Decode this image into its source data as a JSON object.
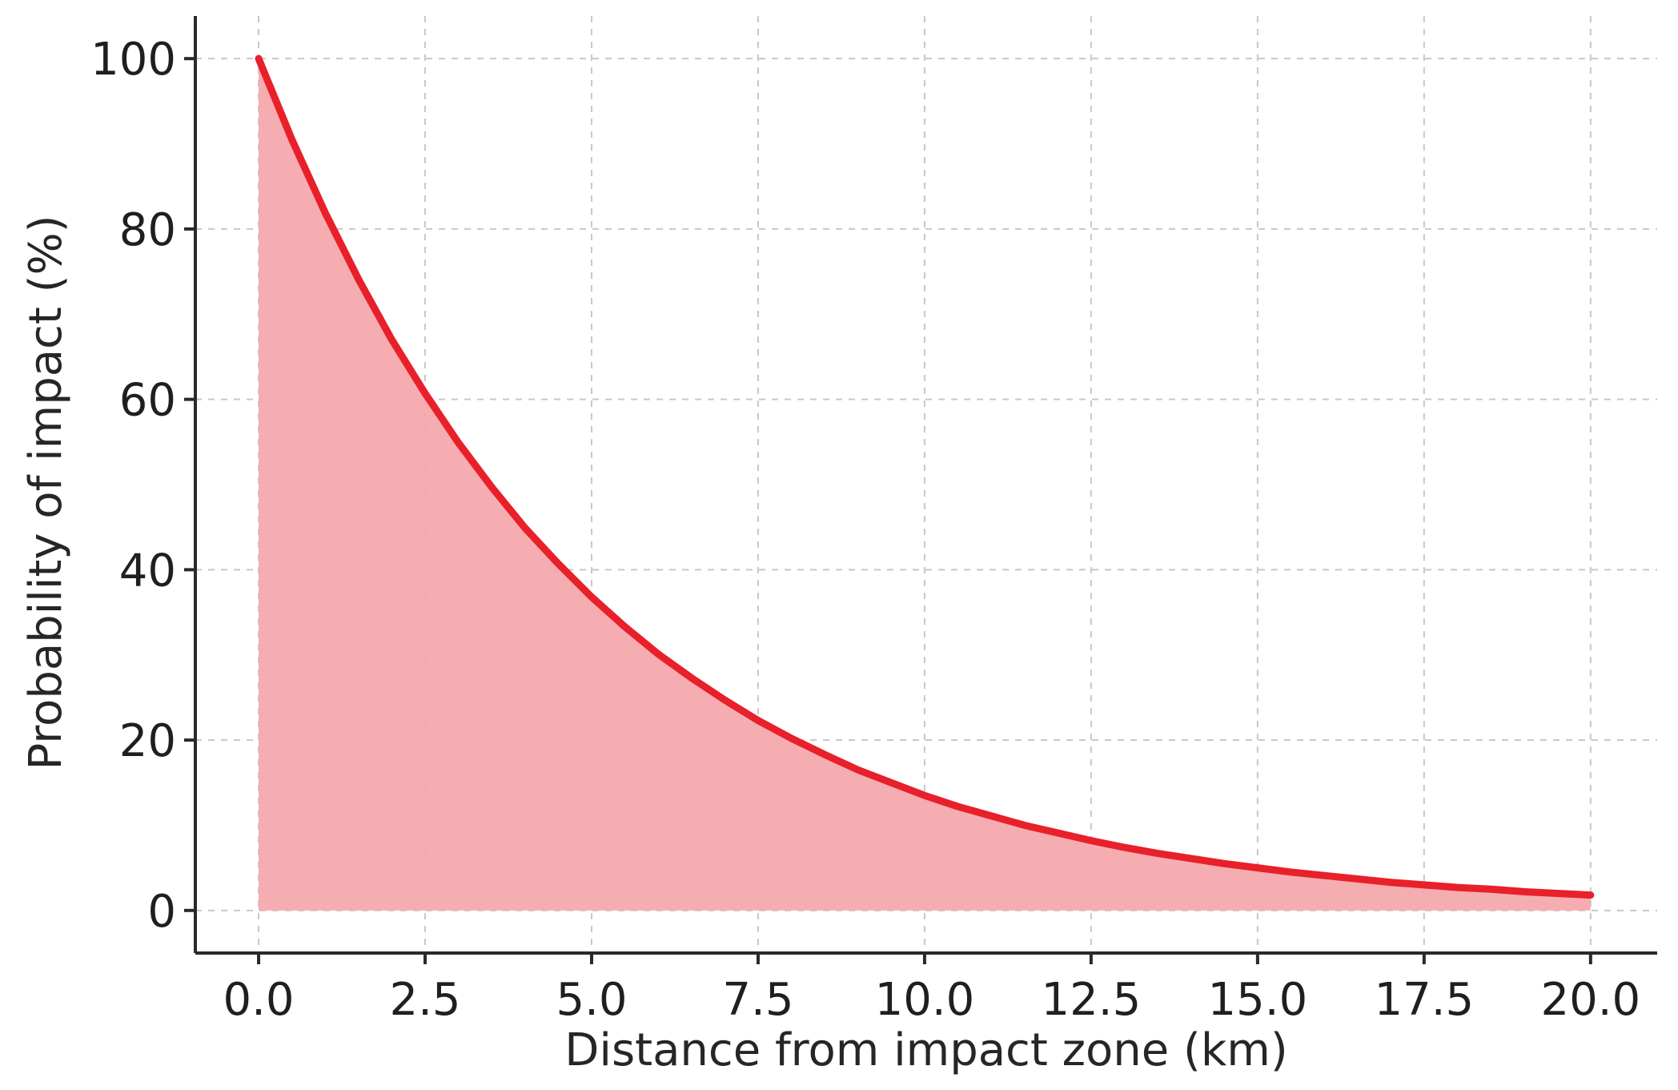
{
  "chart_data": {
    "type": "area",
    "xlabel": "Distance from impact zone (km)",
    "ylabel": "Probability of impact (%)",
    "xlim": [
      -0.95,
      21.0
    ],
    "ylim": [
      -5,
      105
    ],
    "xticks": [
      "0.0",
      "2.5",
      "5.0",
      "7.5",
      "10.0",
      "12.5",
      "15.0",
      "17.5",
      "20.0"
    ],
    "yticks": [
      "0",
      "20",
      "40",
      "60",
      "80",
      "100"
    ],
    "grid": true,
    "legend": "none",
    "series": [
      {
        "x": [
          0,
          0.5,
          1,
          1.5,
          2,
          2.5,
          3,
          3.5,
          4,
          4.5,
          5,
          5.5,
          6,
          6.5,
          7,
          7.5,
          8,
          8.5,
          9,
          9.5,
          10,
          10.5,
          11,
          11.5,
          12,
          12.5,
          13,
          13.5,
          14,
          14.5,
          15,
          15.5,
          16,
          16.5,
          17,
          17.5,
          18,
          18.5,
          19,
          19.5,
          20
        ],
        "y": [
          100,
          90.5,
          81.9,
          74.1,
          67.0,
          60.7,
          54.9,
          49.7,
          44.9,
          40.7,
          36.8,
          33.3,
          30.1,
          27.3,
          24.7,
          22.3,
          20.2,
          18.3,
          16.5,
          15.0,
          13.5,
          12.2,
          11.1,
          10.0,
          9.1,
          8.2,
          7.4,
          6.7,
          6.1,
          5.5,
          5.0,
          4.5,
          4.1,
          3.7,
          3.3,
          3.0,
          2.7,
          2.5,
          2.2,
          2.0,
          1.8
        ]
      }
    ],
    "colors": {
      "line": "#e8202a",
      "fill": "#f5a9ad"
    }
  }
}
